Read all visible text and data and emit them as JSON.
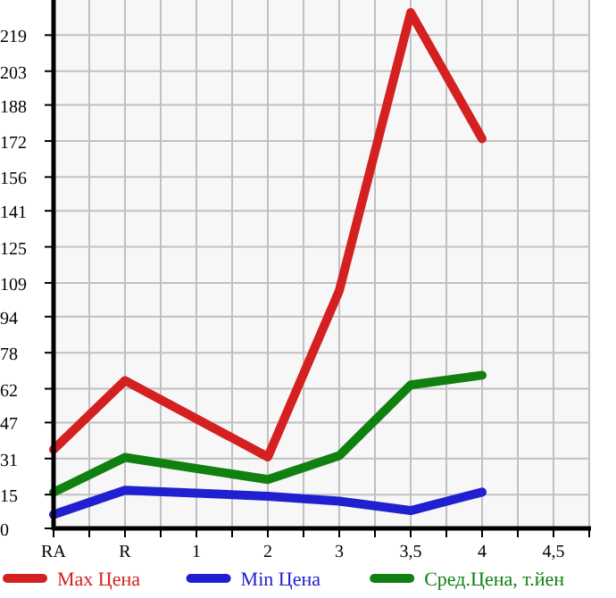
{
  "chart_data": {
    "type": "line",
    "categories": [
      "RA",
      "R",
      "1",
      "2",
      "3",
      "3,5",
      "4",
      "4,5"
    ],
    "ylim": [
      0,
      234.6
    ],
    "yticks": [
      0,
      15,
      31,
      47,
      62,
      78,
      94,
      109,
      125,
      141,
      156,
      172,
      188,
      203,
      219
    ],
    "grid": true,
    "legend": "bottom",
    "marker": "none",
    "line_style": "solid",
    "series": [
      {
        "name": "Max Цена",
        "color": "#d42020",
        "values": [
          35,
          65.6,
          null,
          31.7,
          105.5,
          229,
          173,
          null
        ]
      },
      {
        "name": "Min Цена",
        "color": "#2020d0",
        "values": [
          6.1,
          16.9,
          null,
          14.3,
          12.1,
          7.9,
          16.1,
          null
        ]
      },
      {
        "name": "Сред.Цена, т.йен",
        "color": "#108010",
        "values": [
          16,
          31.5,
          null,
          21.7,
          32.3,
          63.7,
          68,
          null
        ]
      }
    ]
  }
}
